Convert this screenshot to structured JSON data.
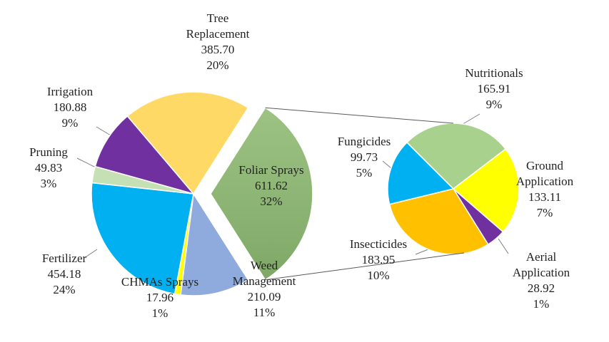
{
  "chart_data": [
    {
      "type": "pie",
      "categories": [
        "Foliar Sprays",
        "Weed Management",
        "CHMAs Sprays",
        "Fertilizer",
        "Pruning",
        "Irrigation",
        "Tree Replacement"
      ],
      "values": [
        611.62,
        210.09,
        17.96,
        454.18,
        49.83,
        180.88,
        385.7
      ],
      "value_labels": [
        "611.62",
        "210.09",
        "17.96",
        "454.18",
        "49.83",
        "180.88",
        "385.70"
      ],
      "percent_labels": [
        "32%",
        "11%",
        "1%",
        "24%",
        "3%",
        "9%",
        "20%"
      ],
      "colors": [
        "#9dc383",
        "#8faadc",
        "#ffff00",
        "#00b0f0",
        "#c5e0b4",
        "#7030a0",
        "#ffd966"
      ]
    },
    {
      "type": "pie",
      "categories": [
        "Nutritionals",
        "Ground Application",
        "Aerial Application",
        "Insecticides",
        "Fungicides"
      ],
      "values": [
        165.91,
        133.11,
        28.92,
        183.95,
        99.73
      ],
      "value_labels": [
        "165.91",
        "133.11",
        "28.92",
        "183.95",
        "99.73"
      ],
      "percent_labels": [
        "9%",
        "7%",
        "1%",
        "10%",
        "5%"
      ],
      "colors": [
        "#a9d18e",
        "#ffff00",
        "#7030a0",
        "#ffc000",
        "#00b0f0"
      ]
    }
  ]
}
